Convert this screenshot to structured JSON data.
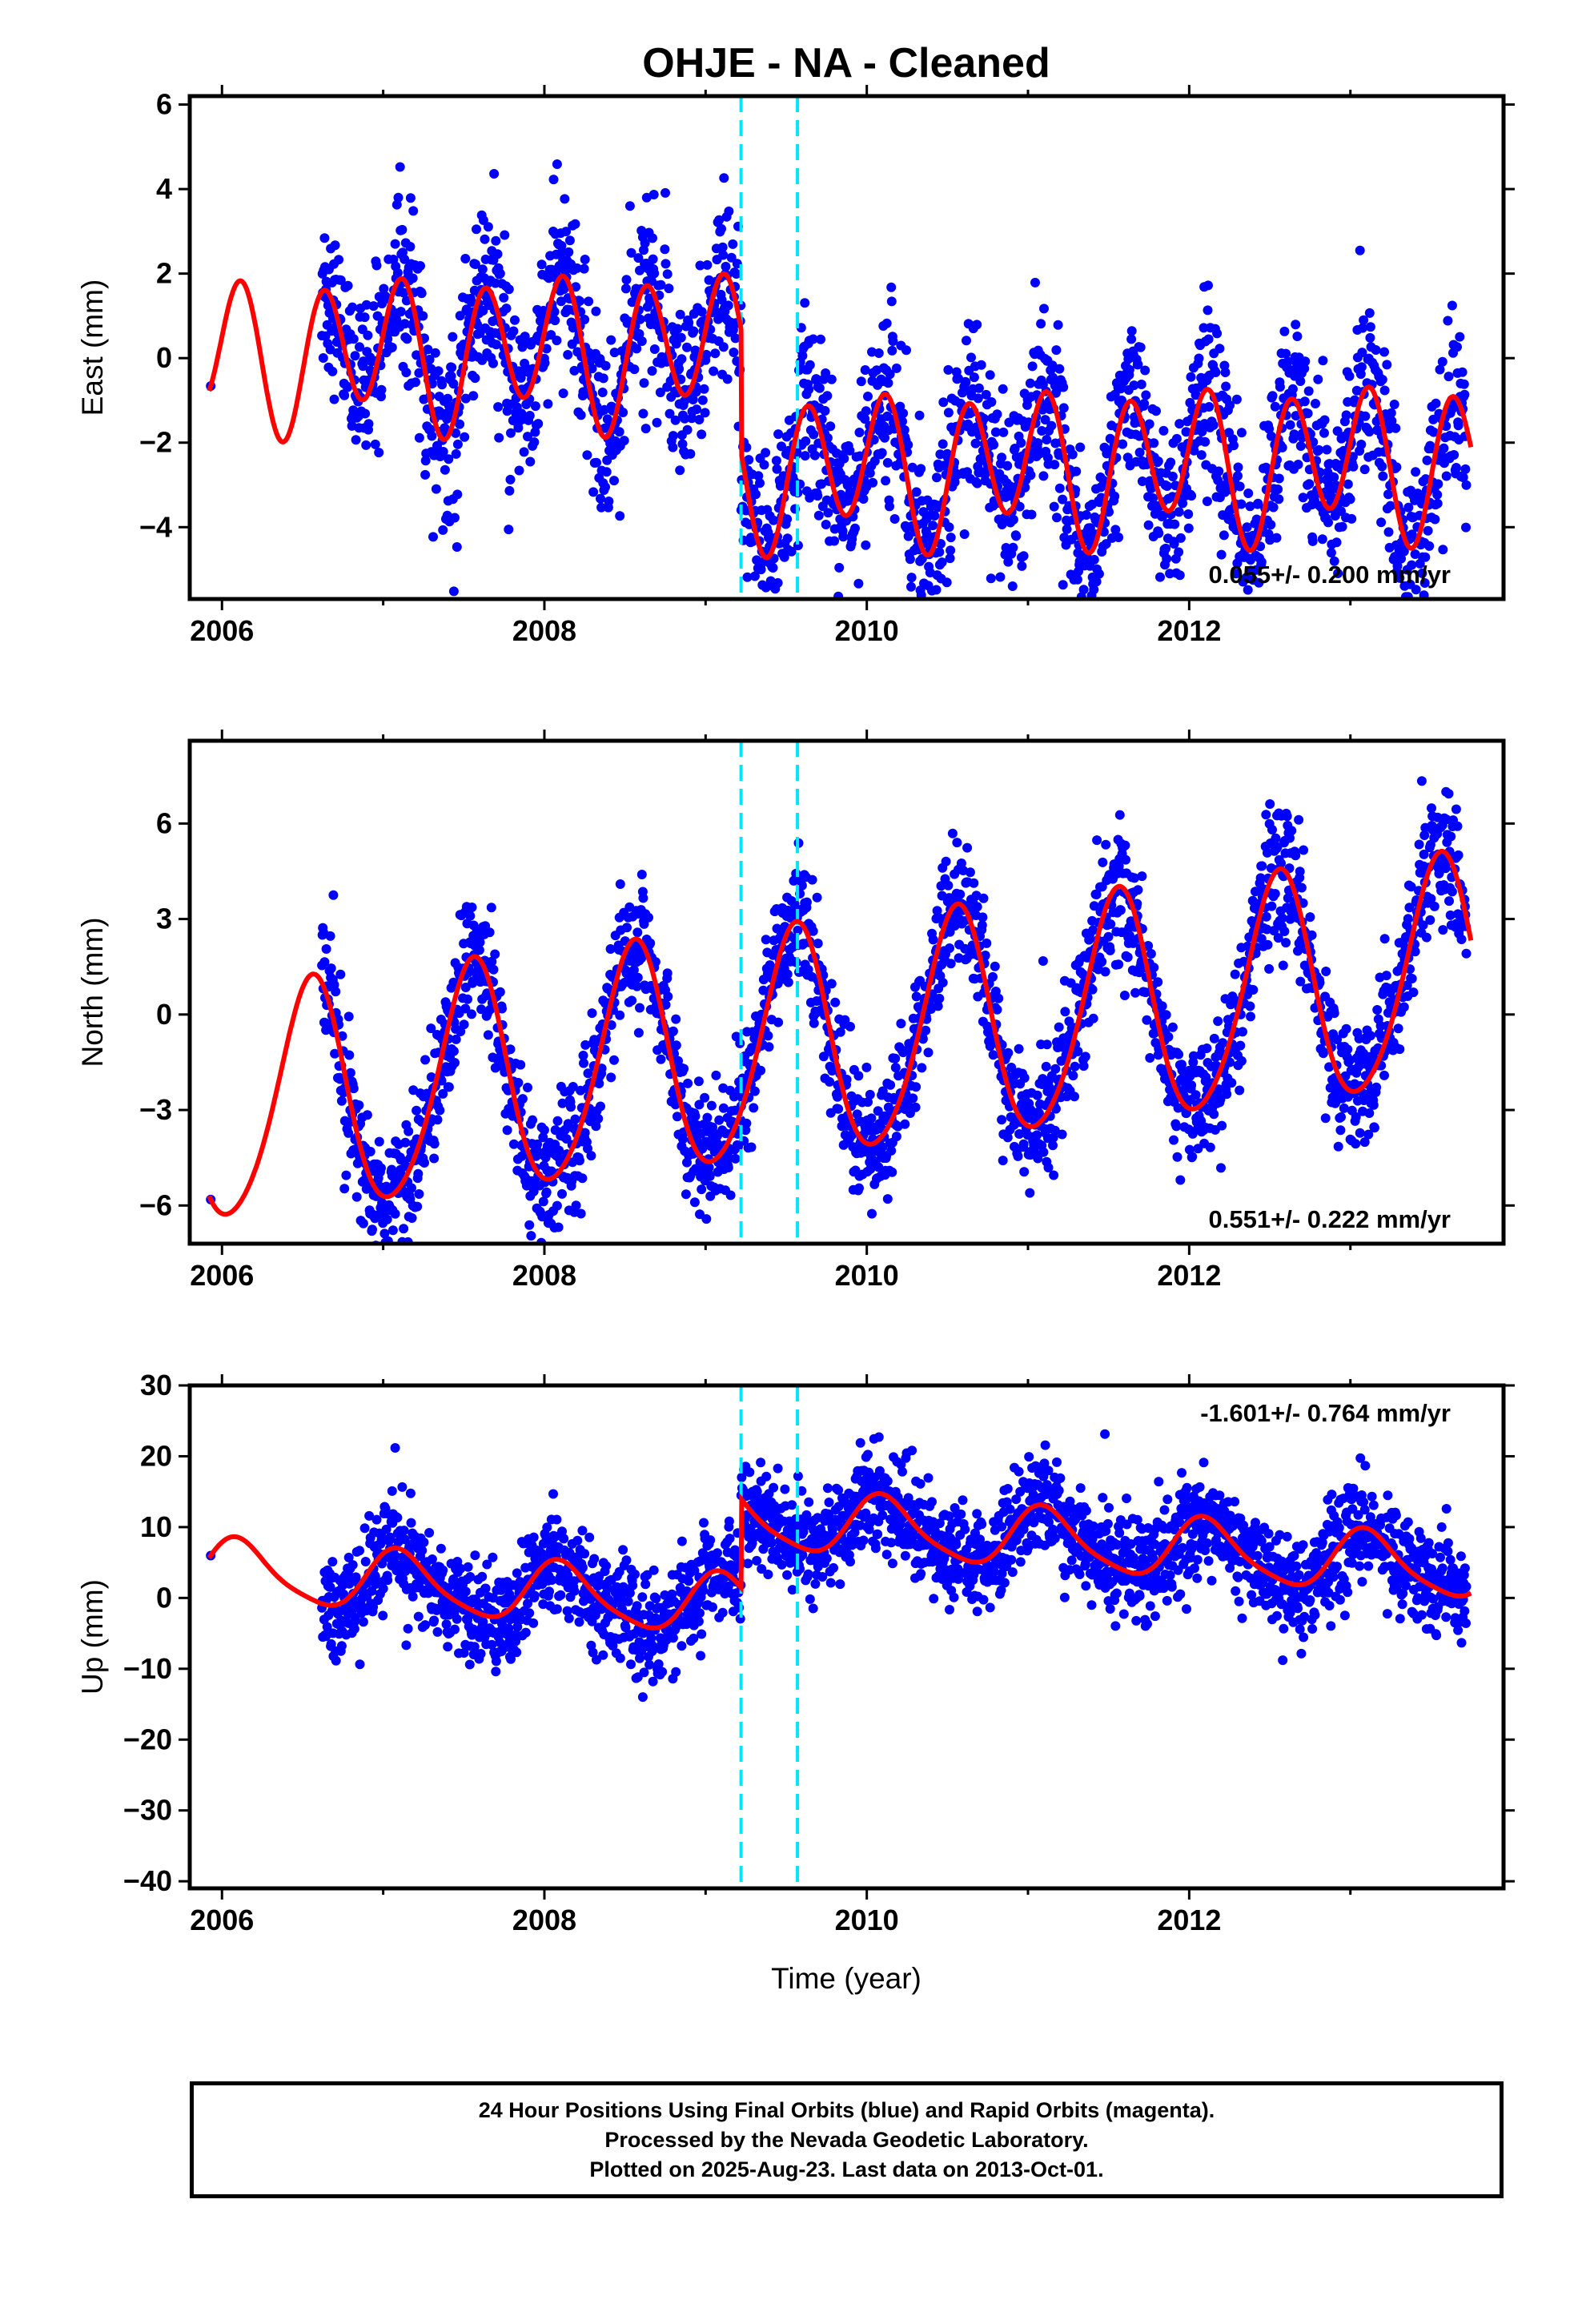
{
  "title": "OHJE  - NA - Cleaned",
  "xlabel": "Time (year)",
  "footer": {
    "line1": "24 Hour Positions Using Final Orbits (blue) and Rapid Orbits (magenta).",
    "line2": "Processed by the Nevada Geodetic Laboratory.",
    "line3": "Plotted on 2025-Aug-23. Last data on 2013-Oct-01."
  },
  "colors": {
    "data": "#0000ff",
    "model": "#ff0000",
    "offset_line": "#00e5ff",
    "frame": "#000000"
  },
  "chart_data": [
    {
      "type": "scatter",
      "ylabel": "East (mm)",
      "xlim": [
        2005.8,
        2013.95
      ],
      "ylim": [
        -5.7,
        6.2
      ],
      "xticks": [
        2006,
        2008,
        2010,
        2012
      ],
      "yticks": [
        -4,
        -2,
        0,
        2,
        4,
        6
      ],
      "rate_text": "0.055+/- 0.200 mm/yr",
      "rate_position": "bottom-right",
      "offset_lines": [
        2009.22,
        2009.57
      ],
      "series": [
        {
          "amp1": 0.5,
          "amp2": 1.6,
          "phase1": 2.1,
          "phase2": 0.0,
          "trend": 0.055,
          "noise": 1.0,
          "steps": [
            {
              "x": 2009.22,
              "dy": -2.9
            }
          ],
          "level": 0.3
        }
      ]
    },
    {
      "type": "scatter",
      "ylabel": "North (mm)",
      "xlim": [
        2005.8,
        2013.95
      ],
      "ylim": [
        -7.2,
        8.6
      ],
      "xticks": [
        2006,
        2008,
        2010,
        2012
      ],
      "yticks": [
        -6,
        -3,
        0,
        3,
        6
      ],
      "rate_text": "0.551+/- 0.222 mm/yr",
      "rate_position": "bottom-right",
      "offset_lines": [
        2009.22,
        2009.57
      ],
      "series": [
        {
          "amp1": 3.6,
          "amp2": 0.4,
          "phase1": -1.9,
          "phase2": 0.4,
          "trend": 0.551,
          "noise": 1.0,
          "steps": [],
          "level": -0.8
        }
      ]
    },
    {
      "type": "scatter",
      "ylabel": "Up (mm)",
      "xlim": [
        2005.8,
        2013.95
      ],
      "ylim": [
        -41,
        30
      ],
      "xticks": [
        2006,
        2008,
        2010,
        2012
      ],
      "yticks": [
        -40,
        -30,
        -20,
        -10,
        0,
        10,
        20,
        30
      ],
      "rate_text": "-1.601+/- 0.764 mm/yr",
      "rate_position": "top-right",
      "offset_lines": [
        2009.22,
        2009.57
      ],
      "series": [
        {
          "amp1": 4.2,
          "amp2": 0.8,
          "phase1": 0.9,
          "phase2": 1.0,
          "trend": -1.601,
          "noise": 3.6,
          "steps": [
            {
              "x": 2009.22,
              "dy": 12.5
            }
          ],
          "level": -2.5
        }
      ]
    }
  ]
}
